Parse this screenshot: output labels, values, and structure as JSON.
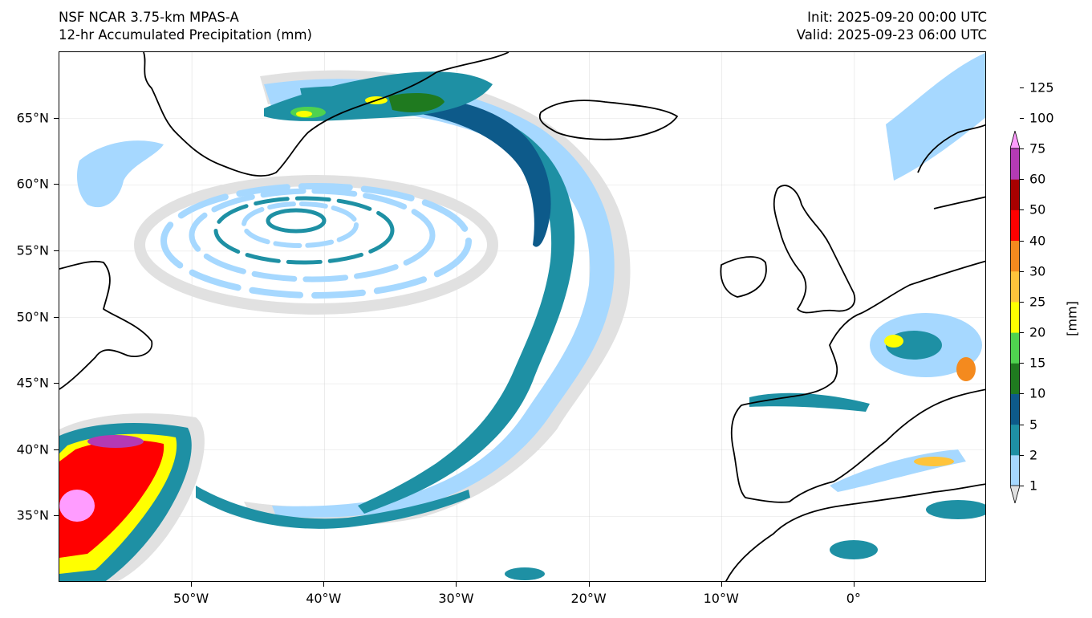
{
  "header": {
    "model_name": "NSF NCAR 3.75-km MPAS-A",
    "field_name": "12-hr Accumulated Precipitation (mm)",
    "init_time": "Init: 2025-09-20 00:00 UTC",
    "valid_time": "Valid: 2025-09-23 06:00 UTC"
  },
  "map": {
    "projection": "plate-carree",
    "lon_range": [
      -60,
      10
    ],
    "lat_range": [
      30,
      70
    ],
    "lat_ticks": [
      {
        "value": 65,
        "label": "65°N"
      },
      {
        "value": 60,
        "label": "60°N"
      },
      {
        "value": 55,
        "label": "55°N"
      },
      {
        "value": 50,
        "label": "50°N"
      },
      {
        "value": 45,
        "label": "45°N"
      },
      {
        "value": 40,
        "label": "40°N"
      },
      {
        "value": 35,
        "label": "35°N"
      }
    ],
    "lon_ticks": [
      {
        "value": -50,
        "label": "50°W"
      },
      {
        "value": -40,
        "label": "40°W"
      },
      {
        "value": -30,
        "label": "30°W"
      },
      {
        "value": -20,
        "label": "20°W"
      },
      {
        "value": -10,
        "label": "10°W"
      },
      {
        "value": 0,
        "label": "0°"
      }
    ]
  },
  "colorbar": {
    "unit_label": "[mm]",
    "levels": [
      "1",
      "2",
      "5",
      "10",
      "15",
      "20",
      "25",
      "30",
      "40",
      "50",
      "60",
      "75",
      "100",
      "125"
    ],
    "colors": [
      "#e1e1e1",
      "#a6d8ff",
      "#1e90a4",
      "#0d5a8a",
      "#1f7a1f",
      "#4fd24f",
      "#ffff00",
      "#ffc43b",
      "#f48a1e",
      "#ff0000",
      "#a80000",
      "#b43ab4",
      "#ff9cff"
    ],
    "extend": "both"
  }
}
